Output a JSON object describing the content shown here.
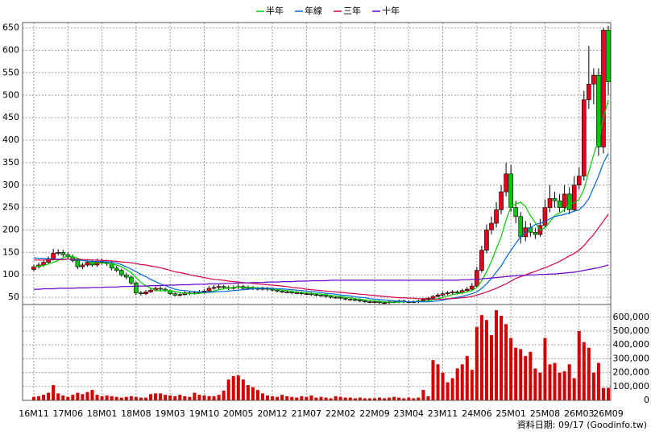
{
  "chart_data": {
    "type": "candlestick",
    "categories": [
      "16M11",
      null,
      null,
      null,
      null,
      null,
      null,
      "17M06",
      null,
      null,
      null,
      null,
      null,
      null,
      "18M01",
      null,
      null,
      null,
      null,
      null,
      null,
      "18M08",
      null,
      null,
      null,
      null,
      null,
      null,
      "19M03",
      null,
      null,
      null,
      null,
      null,
      null,
      "19M10",
      null,
      null,
      null,
      null,
      null,
      null,
      "20M05",
      null,
      null,
      null,
      null,
      null,
      null,
      "20M12",
      null,
      null,
      null,
      null,
      null,
      null,
      "21M07",
      null,
      null,
      null,
      null,
      null,
      null,
      "22M02",
      null,
      null,
      null,
      null,
      null,
      null,
      "22M09",
      null,
      null,
      null,
      null,
      null,
      null,
      "23M04",
      null,
      null,
      null,
      null,
      null,
      null,
      "23M11",
      null,
      null,
      null,
      null,
      null,
      null,
      "24M06",
      null,
      null,
      null,
      null,
      null,
      null,
      "25M01",
      null,
      null,
      null,
      null,
      null,
      null,
      "25M08",
      null,
      null,
      null,
      null,
      null,
      null,
      "26M03",
      null,
      null,
      null,
      null,
      null,
      "26M09"
    ],
    "open": [
      112,
      118,
      122,
      128,
      135,
      148,
      150,
      145,
      140,
      132,
      118,
      122,
      128,
      122,
      130,
      128,
      125,
      115,
      110,
      100,
      95,
      82,
      60,
      58,
      62,
      66,
      70,
      68,
      65,
      58,
      55,
      56,
      60,
      58,
      60,
      62,
      64,
      70,
      72,
      74,
      72,
      70,
      72,
      74,
      70,
      72,
      70,
      68,
      70,
      68,
      66,
      64,
      62,
      62,
      60,
      60,
      58,
      58,
      56,
      55,
      54,
      52,
      50,
      50,
      48,
      46,
      45,
      44,
      42,
      40,
      40,
      40,
      38,
      38,
      40,
      40,
      42,
      40,
      40,
      40,
      42,
      45,
      48,
      52,
      55,
      58,
      60,
      62,
      60,
      65,
      68,
      75,
      110,
      155,
      200,
      215,
      245,
      285,
      325,
      250,
      230,
      185,
      205,
      195,
      190,
      210,
      250,
      270,
      265,
      250,
      280,
      245,
      300,
      320,
      490,
      525,
      545,
      385,
      645
    ],
    "high": [
      123,
      127,
      133,
      141,
      158,
      157,
      156,
      150,
      145,
      136,
      127,
      133,
      133,
      136,
      136,
      133,
      130,
      120,
      114,
      105,
      99,
      85,
      64,
      66,
      70,
      74,
      74,
      72,
      68,
      61,
      60,
      64,
      63,
      64,
      66,
      68,
      75,
      77,
      80,
      78,
      76,
      76,
      80,
      78,
      76,
      75,
      73,
      74,
      73,
      71,
      69,
      67,
      66,
      65,
      64,
      63,
      62,
      61,
      59,
      58,
      57,
      55,
      53,
      53,
      51,
      49,
      48,
      47,
      45,
      43,
      43,
      43,
      41,
      43,
      43,
      45,
      45,
      43,
      43,
      45,
      48,
      51,
      55,
      59,
      62,
      64,
      66,
      66,
      69,
      73,
      82,
      118,
      165,
      212,
      230,
      262,
      300,
      350,
      345,
      265,
      240,
      220,
      215,
      205,
      225,
      268,
      300,
      285,
      280,
      300,
      295,
      320,
      340,
      510,
      610,
      560,
      560,
      650,
      655
    ],
    "low": [
      108,
      114,
      118,
      124,
      132,
      143,
      140,
      135,
      128,
      113,
      113,
      118,
      118,
      118,
      123,
      120,
      110,
      106,
      96,
      90,
      78,
      55,
      54,
      55,
      60,
      63,
      64,
      62,
      55,
      52,
      52,
      54,
      55,
      56,
      58,
      59,
      62,
      67,
      68,
      68,
      66,
      67,
      68,
      66,
      67,
      66,
      65,
      65,
      64,
      63,
      61,
      59,
      59,
      57,
      57,
      55,
      55,
      53,
      52,
      51,
      49,
      47,
      47,
      45,
      43,
      42,
      41,
      39,
      37,
      37,
      37,
      35,
      35,
      35,
      37,
      37,
      37,
      37,
      37,
      37,
      40,
      42,
      46,
      50,
      52,
      55,
      57,
      56,
      57,
      62,
      64,
      72,
      105,
      148,
      190,
      205,
      235,
      275,
      240,
      215,
      170,
      175,
      185,
      180,
      185,
      205,
      240,
      250,
      240,
      240,
      235,
      240,
      290,
      310,
      470,
      480,
      365,
      370,
      500
    ],
    "close": [
      118,
      122,
      128,
      135,
      148,
      150,
      145,
      140,
      132,
      118,
      122,
      128,
      122,
      130,
      128,
      125,
      115,
      110,
      100,
      95,
      82,
      60,
      58,
      62,
      66,
      70,
      68,
      65,
      58,
      55,
      56,
      60,
      58,
      60,
      62,
      64,
      70,
      72,
      74,
      72,
      70,
      72,
      74,
      70,
      72,
      70,
      68,
      70,
      68,
      66,
      64,
      62,
      62,
      60,
      60,
      58,
      58,
      56,
      55,
      54,
      52,
      50,
      50,
      48,
      46,
      45,
      44,
      42,
      40,
      40,
      40,
      38,
      38,
      40,
      40,
      42,
      40,
      40,
      40,
      42,
      45,
      48,
      52,
      55,
      58,
      60,
      62,
      60,
      65,
      68,
      75,
      110,
      155,
      200,
      215,
      245,
      285,
      325,
      250,
      230,
      185,
      205,
      195,
      190,
      210,
      250,
      270,
      265,
      250,
      280,
      245,
      300,
      320,
      490,
      525,
      545,
      385,
      645,
      530
    ],
    "up_color": "#e8001c",
    "down_color": "#00c800",
    "ylim": [
      34,
      662
    ],
    "yticks": [
      50,
      100,
      150,
      200,
      250,
      300,
      350,
      400,
      450,
      500,
      550,
      600,
      650
    ],
    "grid": true,
    "series": [
      {
        "name": "半年",
        "color": "#00cc00",
        "values": [
          118,
          119,
          121,
          124,
          128,
          132,
          138,
          142,
          141,
          137,
          133,
          130,
          127,
          127,
          126,
          126,
          125,
          122,
          118,
          112,
          105,
          94,
          83,
          76,
          71,
          66,
          64,
          65,
          65,
          63,
          61,
          59,
          58,
          58,
          59,
          60,
          62,
          64,
          67,
          69,
          71,
          72,
          73,
          72,
          72,
          72,
          71,
          71,
          70,
          69,
          68,
          66,
          65,
          63,
          62,
          61,
          60,
          59,
          58,
          57,
          56,
          54,
          53,
          52,
          50,
          49,
          47,
          46,
          44,
          43,
          42,
          41,
          40,
          39,
          39,
          39,
          40,
          40,
          40,
          41,
          41,
          42,
          45,
          47,
          50,
          53,
          56,
          58,
          60,
          62,
          65,
          72,
          87,
          107,
          130,
          158,
          185,
          222,
          252,
          258,
          262,
          252,
          232,
          216,
          200,
          205,
          218,
          232,
          238,
          245,
          258,
          260,
          268,
          290,
          330,
          368,
          400,
          450,
          490
        ]
      },
      {
        "name": "年線",
        "color": "#0066dd",
        "values": [
          138,
          137,
          137,
          136,
          136,
          135,
          135,
          135,
          134,
          133,
          132,
          131,
          130,
          130,
          130,
          129,
          128,
          126,
          123,
          118,
          113,
          107,
          101,
          96,
          90,
          85,
          80,
          76,
          72,
          68,
          66,
          65,
          64,
          63,
          62,
          61,
          61,
          62,
          63,
          63,
          64,
          65,
          66,
          67,
          68,
          69,
          70,
          70,
          70,
          70,
          69,
          69,
          68,
          67,
          66,
          65,
          64,
          63,
          62,
          61,
          59,
          58,
          57,
          55,
          54,
          53,
          51,
          50,
          49,
          47,
          46,
          45,
          44,
          43,
          42,
          41,
          41,
          40,
          40,
          40,
          40,
          40,
          41,
          42,
          44,
          46,
          48,
          50,
          52,
          55,
          58,
          62,
          70,
          80,
          92,
          106,
          120,
          138,
          155,
          170,
          185,
          195,
          205,
          212,
          215,
          218,
          225,
          230,
          232,
          235,
          238,
          242,
          245,
          255,
          270,
          295,
          320,
          350,
          370
        ]
      },
      {
        "name": "三年",
        "color": "#d6004a",
        "values": [
          133,
          133,
          133,
          133,
          134,
          134,
          134,
          135,
          135,
          135,
          134,
          134,
          133,
          133,
          132,
          132,
          131,
          130,
          129,
          128,
          127,
          125,
          123,
          122,
          120,
          118,
          116,
          113,
          110,
          107,
          105,
          103,
          100,
          98,
          96,
          94,
          92,
          90,
          89,
          88,
          86,
          85,
          84,
          83,
          82,
          81,
          80,
          79,
          78,
          77,
          76,
          75,
          74,
          72,
          71,
          70,
          68,
          67,
          66,
          65,
          64,
          63,
          62,
          61,
          60,
          59,
          58,
          57,
          56,
          55,
          54,
          53,
          52,
          51,
          50,
          49,
          49,
          48,
          48,
          47,
          47,
          47,
          46,
          46,
          46,
          47,
          47,
          48,
          49,
          50,
          52,
          55,
          58,
          62,
          66,
          70,
          75,
          80,
          86,
          92,
          96,
          100,
          104,
          108,
          112,
          116,
          120,
          125,
          130,
          136,
          142,
          148,
          155,
          165,
          178,
          190,
          205,
          220,
          235
        ]
      },
      {
        "name": "十年",
        "color": "#6a00c8",
        "values": [
          68,
          68,
          69,
          69,
          69,
          70,
          70,
          70,
          70,
          71,
          71,
          71,
          72,
          72,
          72,
          73,
          73,
          73,
          74,
          74,
          74,
          75,
          75,
          75,
          76,
          76,
          76,
          77,
          77,
          77,
          78,
          78,
          78,
          79,
          79,
          79,
          80,
          80,
          80,
          81,
          81,
          81,
          82,
          82,
          82,
          83,
          83,
          83,
          84,
          84,
          84,
          85,
          85,
          85,
          86,
          86,
          86,
          87,
          87,
          87,
          87,
          88,
          88,
          88,
          88,
          88,
          88,
          88,
          88,
          88,
          88,
          88,
          88,
          88,
          88,
          88,
          88,
          88,
          88,
          88,
          88,
          88,
          88,
          88,
          88,
          88,
          88,
          88,
          89,
          89,
          90,
          90,
          91,
          92,
          93,
          94,
          95,
          96,
          97,
          98,
          99,
          99,
          100,
          100,
          101,
          101,
          102,
          102,
          103,
          104,
          105,
          106,
          108,
          110,
          112,
          114,
          116,
          119,
          122
        ]
      }
    ],
    "volume": {
      "color": "#d40000",
      "values": [
        25000,
        30000,
        40000,
        55000,
        110000,
        50000,
        35000,
        25000,
        40000,
        55000,
        45000,
        60000,
        75000,
        40000,
        30000,
        35000,
        30000,
        25000,
        20000,
        25000,
        30000,
        25000,
        20000,
        20000,
        45000,
        50000,
        50000,
        40000,
        35000,
        30000,
        40000,
        30000,
        25000,
        55000,
        40000,
        35000,
        30000,
        30000,
        40000,
        70000,
        150000,
        175000,
        180000,
        150000,
        110000,
        95000,
        75000,
        50000,
        35000,
        30000,
        25000,
        40000,
        30000,
        25000,
        20000,
        30000,
        25000,
        35000,
        20000,
        25000,
        20000,
        15000,
        30000,
        25000,
        20000,
        20000,
        15000,
        20000,
        15000,
        15000,
        15000,
        20000,
        15000,
        20000,
        25000,
        20000,
        15000,
        20000,
        15000,
        20000,
        75000,
        30000,
        290000,
        260000,
        200000,
        130000,
        160000,
        230000,
        260000,
        320000,
        220000,
        530000,
        615000,
        580000,
        470000,
        650000,
        610000,
        550000,
        450000,
        380000,
        370000,
        320000,
        350000,
        230000,
        200000,
        450000,
        260000,
        270000,
        200000,
        210000,
        260000,
        160000,
        500000,
        420000,
        380000,
        200000,
        270000,
        90000,
        90000
      ],
      "ylim": [
        0,
        680000
      ],
      "yticks": [
        0,
        {
          "value": 100000,
          "label": "100,000"
        },
        {
          "value": 200000,
          "label": "200,000"
        },
        {
          "value": 300000,
          "label": "300,000"
        },
        {
          "value": 400000,
          "label": "400,000"
        },
        {
          "value": 500000,
          "label": "500,000"
        },
        {
          "value": 600000,
          "label": "600,000"
        }
      ]
    },
    "source": "資料日期: 09/17 (Goodinfo.tw)"
  }
}
